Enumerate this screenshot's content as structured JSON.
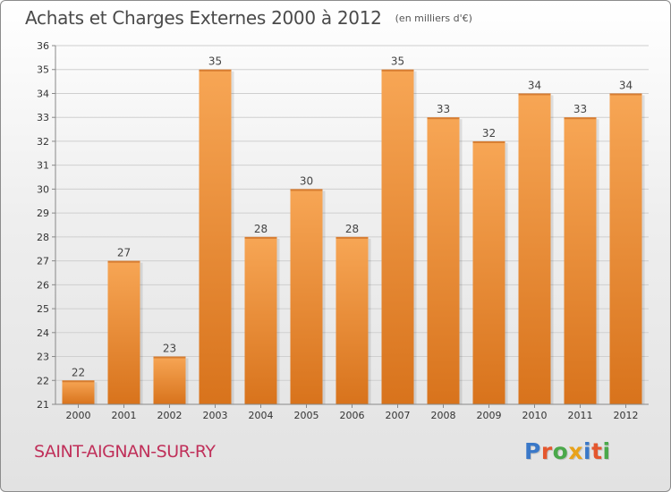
{
  "header": {
    "title": "Achats et Charges Externes 2000 à 2012",
    "subtitle": "(en milliers d'€)"
  },
  "footer": {
    "place": "SAINT-AIGNAN-SUR-RY",
    "logo_letters": [
      {
        "ch": "P",
        "color": "#3a78c8"
      },
      {
        "ch": "r",
        "color": "#e4572e"
      },
      {
        "ch": "o",
        "color": "#4aa84a"
      },
      {
        "ch": "x",
        "color": "#e8a21a"
      },
      {
        "ch": "i",
        "color": "#3a78c8"
      },
      {
        "ch": "t",
        "color": "#e4572e"
      },
      {
        "ch": "i",
        "color": "#4aa84a"
      }
    ]
  },
  "chart_data": {
    "type": "bar",
    "title": "Achats et Charges Externes 2000 à 2012",
    "subtitle": "(en milliers d'€)",
    "categories": [
      "2000",
      "2001",
      "2002",
      "2003",
      "2004",
      "2005",
      "2006",
      "2007",
      "2008",
      "2009",
      "2010",
      "2011",
      "2012"
    ],
    "values": [
      22,
      27,
      23,
      35,
      28,
      30,
      28,
      35,
      33,
      32,
      34,
      33,
      34
    ],
    "ylim": [
      21,
      36
    ],
    "yticks": [
      21,
      22,
      23,
      24,
      25,
      26,
      27,
      28,
      29,
      30,
      31,
      32,
      33,
      34,
      35,
      36
    ],
    "grid": true,
    "bar_color_top": "#f7a655",
    "bar_color_bottom": "#d8731c"
  }
}
